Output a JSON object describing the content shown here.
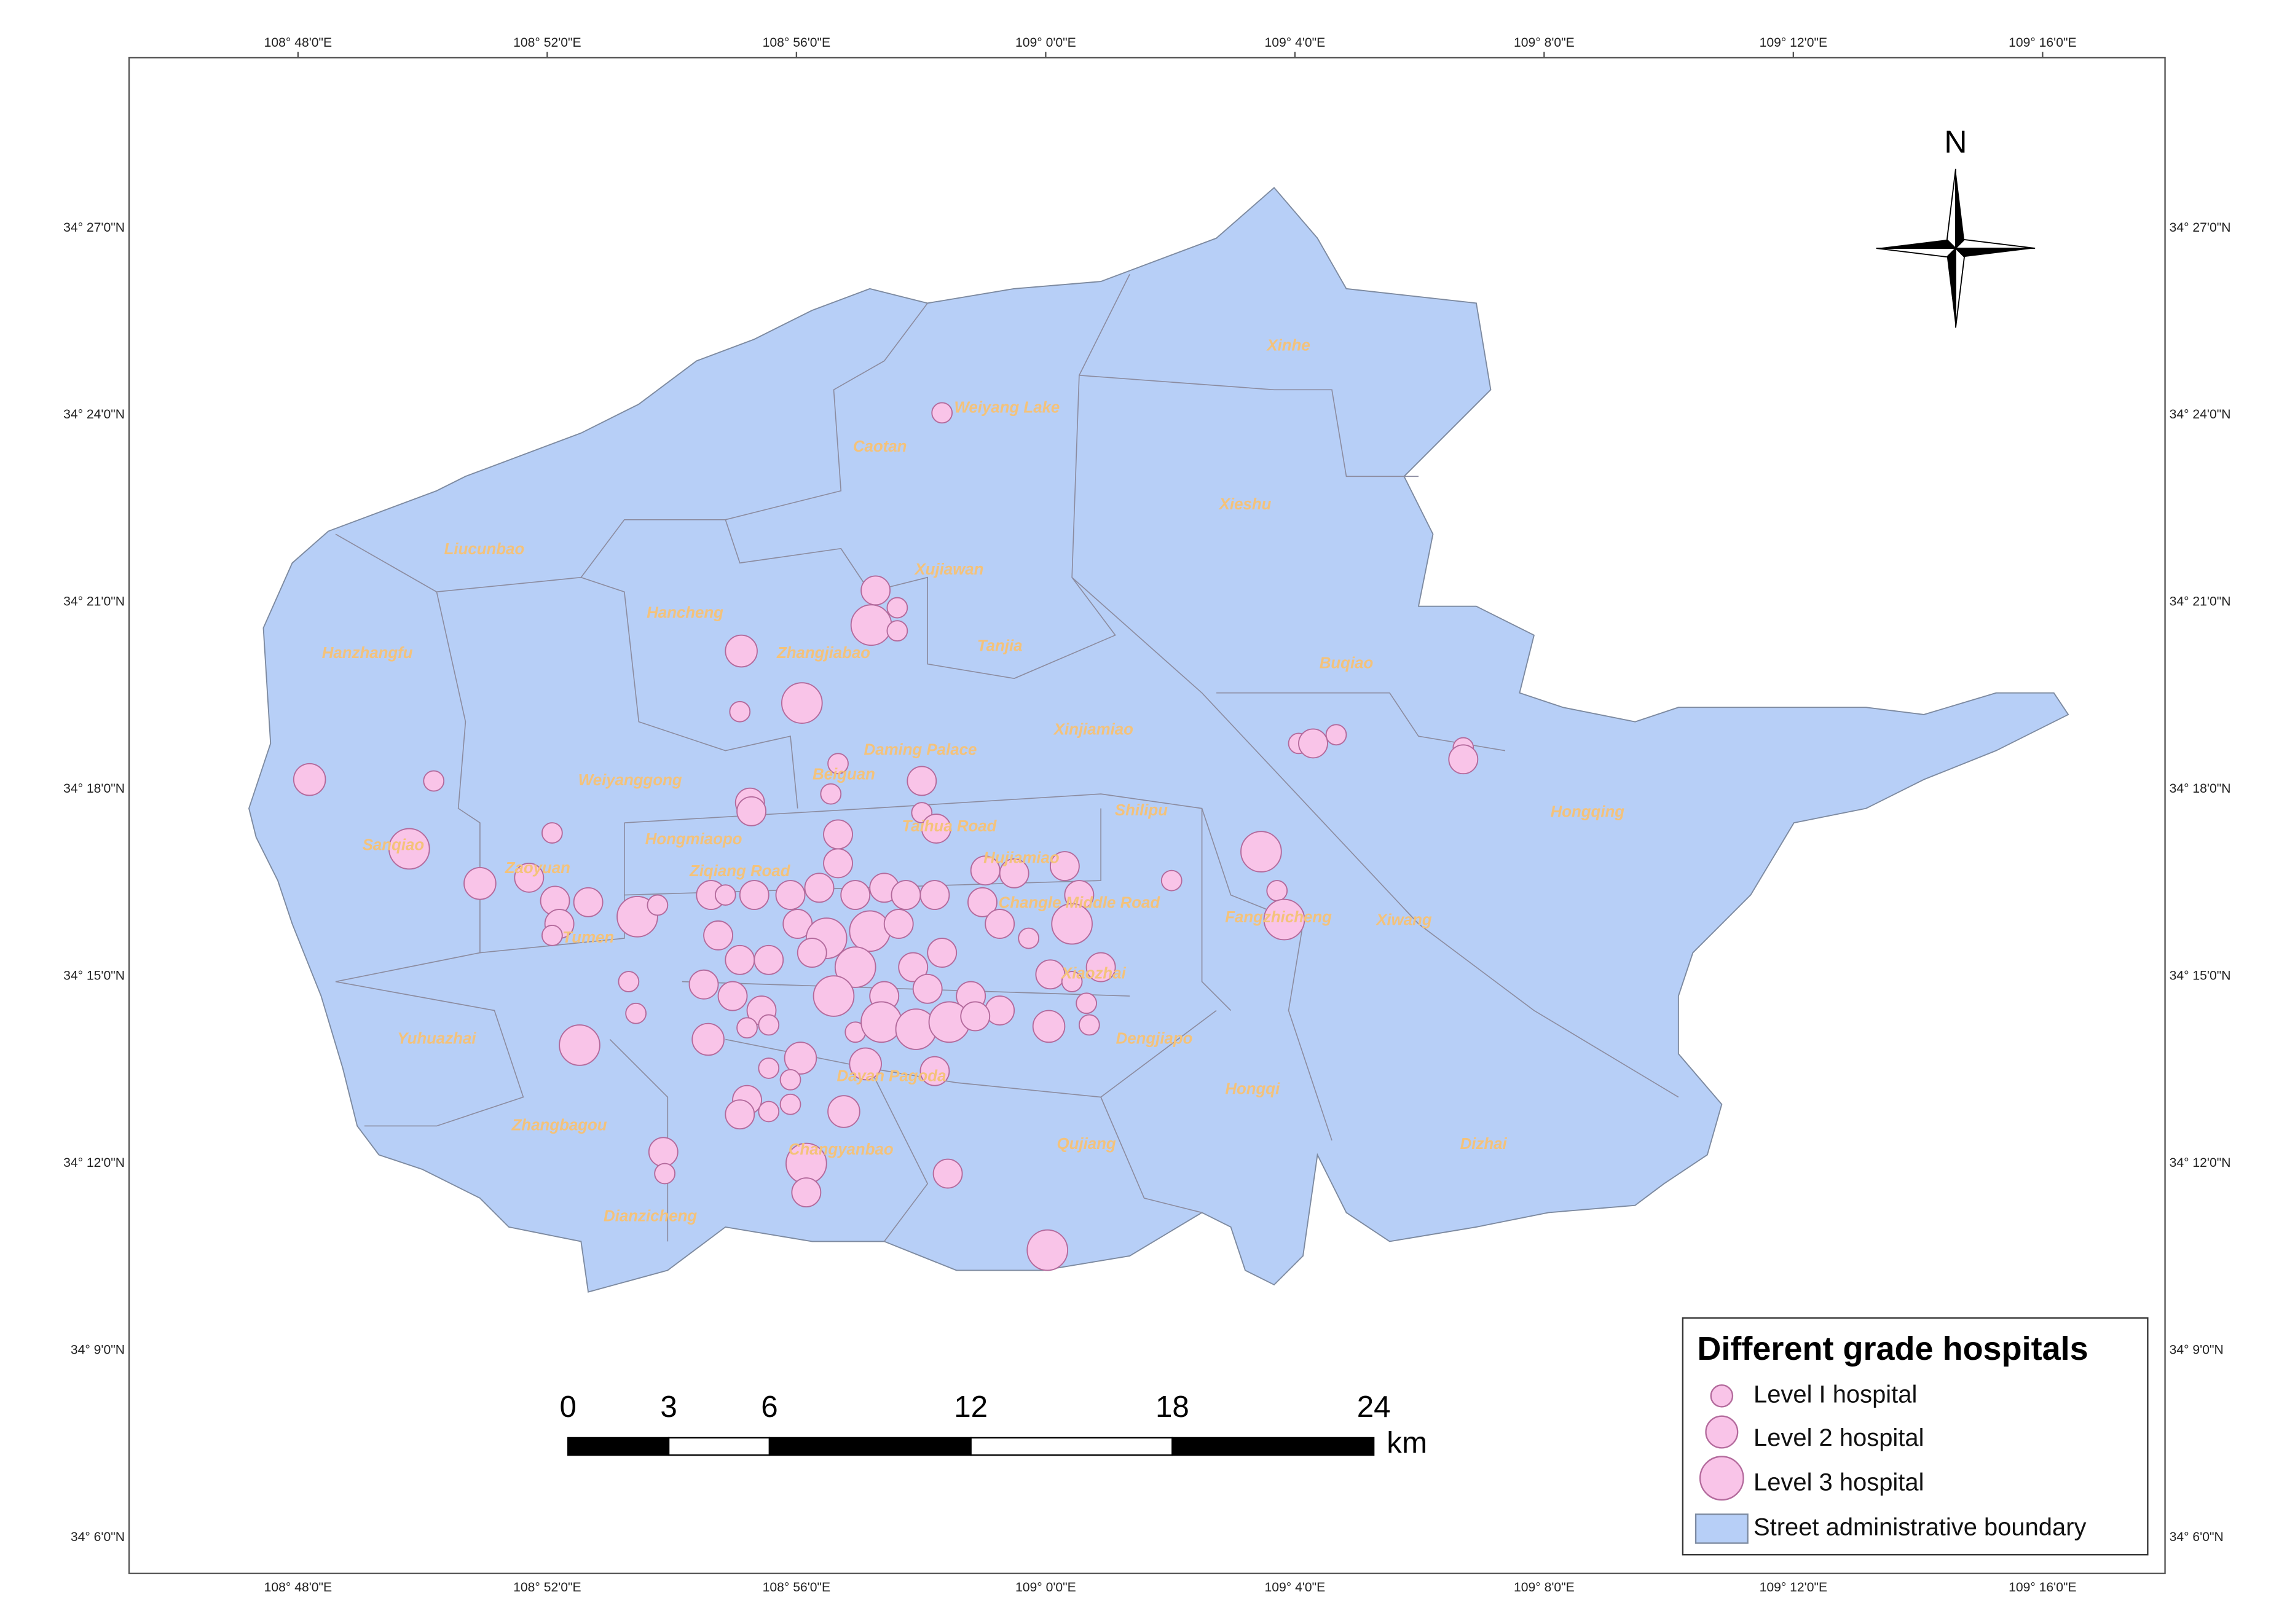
{
  "map": {
    "north": "N",
    "x_labels": [
      "108° 48'0\"E",
      "108° 52'0\"E",
      "108° 56'0\"E",
      "109° 0'0\"E",
      "109° 4'0\"E",
      "109° 8'0\"E",
      "109° 12'0\"E",
      "109° 16'0\"E"
    ],
    "y_labels": [
      "34° 27'0\"N",
      "34° 24'0\"N",
      "34° 21'0\"N",
      "34° 18'0\"N",
      "34° 15'0\"N",
      "34° 12'0\"N",
      "34° 9'0\"N",
      "34° 6'0\"N"
    ],
    "districts": [
      "Weiyang Lake",
      "Caotan",
      "Liucunbao",
      "Xujiawan",
      "Hancheng",
      "Zhangjiabao",
      "Tanjia",
      "Xinhe",
      "Xieshu",
      "Buqiao",
      "Hanzhangfu",
      "Daming Palace",
      "Xinjiamiao",
      "Beiguan",
      "Shilipu",
      "Hongqing",
      "Weiyanggong",
      "Sanqiao",
      "Zaoyuan",
      "Hongmiaopo",
      "Taihua Road",
      "Ziqiang Road",
      "Hujiamiao",
      "Changle Middle Road",
      "Fangzhicheng",
      "Xiwang",
      "Tumen",
      "Yuhuazhai",
      "Zhangbagou",
      "Dianzicheng",
      "Changyanbao",
      "Qujiang",
      "Dizhai",
      "Hongqi",
      "Dengjiapo",
      "Xiaozhai",
      "Dayan Pagoda"
    ],
    "scale": {
      "ticks": [
        0,
        3,
        6,
        12,
        18,
        24
      ],
      "unit": "km"
    },
    "legend": {
      "title": "Different grade hospitals",
      "items": [
        "Level I hospital",
        "Level 2 hospital",
        "Level 3 hospital",
        "Street administrative boundary"
      ]
    }
  }
}
